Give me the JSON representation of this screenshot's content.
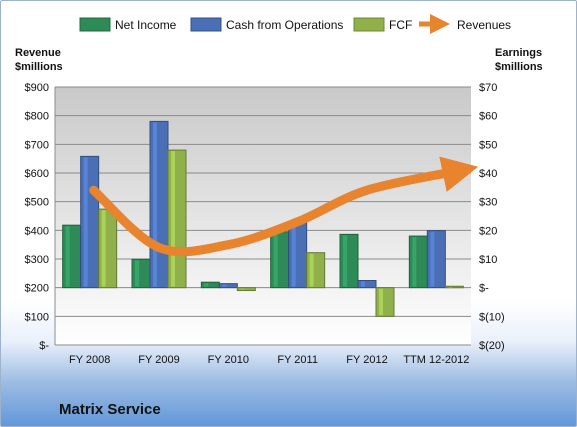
{
  "chart_data": {
    "type": "bar",
    "title": "Matrix Service",
    "categories": [
      "FY 2008",
      "FY 2009",
      "FY 2010",
      "FY 2011",
      "FY 2012",
      "TTM 12-2012"
    ],
    "series": [
      {
        "name": "Net Income",
        "axis": "right",
        "kind": "bar",
        "color": "#2e8b57",
        "values": [
          21.8,
          9.9,
          1.9,
          19.5,
          18.6,
          18.0
        ]
      },
      {
        "name": "Cash from Operations",
        "axis": "right",
        "kind": "bar",
        "color": "#4a6fb5",
        "values": [
          45.8,
          58.0,
          1.4,
          22.6,
          2.5,
          19.9
        ]
      },
      {
        "name": "FCF",
        "axis": "right",
        "kind": "bar",
        "color": "#8fb04a",
        "values": [
          27.4,
          48.0,
          -1.0,
          12.2,
          -10.0,
          0.5
        ]
      },
      {
        "name": "Revenues",
        "axis": "left",
        "kind": "line",
        "color": "#e8832e",
        "values": [
          540,
          340,
          350,
          430,
          540,
          610
        ]
      }
    ],
    "left_axis": {
      "label": "Revenue\n$millions",
      "ylim": [
        0,
        900
      ],
      "ticks": [
        900,
        800,
        700,
        600,
        500,
        400,
        300,
        200,
        100,
        0
      ],
      "tick_labels": [
        "$900",
        "$800",
        "$700",
        "$600",
        "$500",
        "$400",
        "$300",
        "$200",
        "$100",
        "$-"
      ]
    },
    "right_axis": {
      "label": "Earnings\n$millions",
      "ylim": [
        -20,
        70
      ],
      "ticks": [
        70,
        60,
        50,
        40,
        30,
        20,
        10,
        0,
        -10,
        -20
      ],
      "tick_labels": [
        "$70",
        "$60",
        "$50",
        "$40",
        "$30",
        "$20",
        "$10",
        "$-",
        "$(10)",
        "$(20)"
      ]
    },
    "grid": true,
    "legend_position": "top"
  }
}
